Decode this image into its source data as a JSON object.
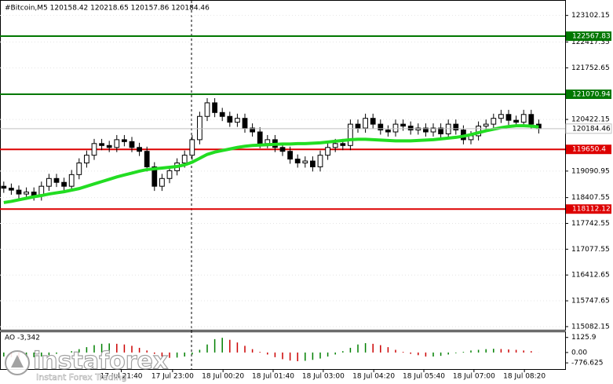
{
  "chart_data": {
    "type": "candlestick",
    "title": "#Bitcoin,M5  120158.42 120218.65 120157.86 120184.46",
    "open": [
      118700,
      118650,
      118600,
      118500,
      118550,
      118450,
      118700,
      118900,
      118800,
      118700,
      119000,
      119300,
      119500,
      119800,
      119750,
      119700,
      119900,
      119850,
      119700,
      119600,
      119200,
      118700,
      118900,
      119100,
      119300,
      119500,
      119900,
      120500,
      120850,
      120600,
      120500,
      120350,
      120450,
      120200,
      120100,
      119800,
      119900,
      119700,
      119600,
      119400,
      119300,
      119350,
      119200,
      119500,
      119700,
      119800,
      119750,
      120300,
      120200,
      120450,
      120300,
      120150,
      120100,
      120300,
      120250,
      120150,
      120200,
      120100,
      120200,
      120050,
      120300,
      120150,
      119900,
      120000,
      120250,
      120300,
      120450,
      120550,
      120400,
      120350,
      120550,
      120300
    ],
    "high": [
      118820,
      118770,
      118720,
      118670,
      118670,
      118820,
      119020,
      119020,
      118920,
      119120,
      119420,
      119620,
      119920,
      119920,
      119870,
      120020,
      120020,
      119970,
      119820,
      119720,
      119320,
      119020,
      119220,
      119420,
      119620,
      120020,
      120620,
      120970,
      120970,
      120720,
      120620,
      120570,
      120570,
      120320,
      120220,
      120020,
      120020,
      119820,
      119720,
      119520,
      119470,
      119470,
      119620,
      119820,
      119920,
      119920,
      120420,
      120420,
      120570,
      120570,
      120420,
      120270,
      120420,
      120420,
      120370,
      120320,
      120320,
      120320,
      120320,
      120420,
      120420,
      120270,
      120120,
      120370,
      120420,
      120570,
      120670,
      120670,
      120520,
      120670,
      120670,
      120420
    ],
    "low": [
      118530,
      118480,
      118380,
      118380,
      118330,
      118330,
      118580,
      118680,
      118580,
      118580,
      118880,
      119180,
      119380,
      119630,
      119580,
      119580,
      119730,
      119580,
      119480,
      119080,
      118580,
      118580,
      118780,
      118980,
      119180,
      119380,
      119780,
      120380,
      120480,
      120380,
      120230,
      120230,
      120080,
      119980,
      119680,
      119680,
      119580,
      119480,
      119280,
      119180,
      119180,
      119080,
      119080,
      119380,
      119580,
      119630,
      119630,
      120080,
      120080,
      120180,
      120030,
      119980,
      119980,
      120130,
      120030,
      120030,
      119980,
      119980,
      119930,
      119930,
      120030,
      119780,
      119780,
      119880,
      120130,
      120180,
      120330,
      120280,
      120230,
      120230,
      120180,
      120060
    ],
    "close": [
      118650,
      118600,
      118500,
      118550,
      118450,
      118700,
      118900,
      118800,
      118700,
      119000,
      119300,
      119500,
      119800,
      119750,
      119700,
      119900,
      119850,
      119700,
      119600,
      119200,
      118700,
      118900,
      119100,
      119300,
      119500,
      119900,
      120500,
      120850,
      120600,
      120500,
      120350,
      120450,
      120200,
      120100,
      119800,
      119900,
      119700,
      119600,
      119400,
      119300,
      119350,
      119200,
      119500,
      119700,
      119800,
      119750,
      120300,
      120200,
      120450,
      120300,
      120150,
      120100,
      120300,
      120250,
      120150,
      120200,
      120100,
      120200,
      120050,
      120300,
      120150,
      119900,
      120000,
      120250,
      120300,
      120450,
      120550,
      120400,
      120350,
      120550,
      120300,
      120184.46
    ],
    "up_color": "#ffffff",
    "down_color": "#000000",
    "ma": {
      "color": "#22dd22",
      "values": [
        118280,
        118310,
        118350,
        118390,
        118430,
        118460,
        118500,
        118530,
        118560,
        118600,
        118640,
        118700,
        118760,
        118820,
        118880,
        118940,
        118990,
        119040,
        119090,
        119130,
        119150,
        119170,
        119190,
        119210,
        119250,
        119320,
        119420,
        119520,
        119580,
        119620,
        119660,
        119700,
        119730,
        119750,
        119760,
        119770,
        119780,
        119790,
        119790,
        119800,
        119800,
        119810,
        119820,
        119840,
        119860,
        119880,
        119900,
        119910,
        119910,
        119900,
        119890,
        119880,
        119870,
        119870,
        119870,
        119880,
        119890,
        119900,
        119920,
        119940,
        119960,
        119990,
        120030,
        120080,
        120130,
        120170,
        120210,
        120240,
        120260,
        120260,
        120250,
        120230
      ]
    },
    "levels": [
      {
        "value": 122567.83,
        "color": "#007700"
      },
      {
        "value": 121070.94,
        "color": "#007700"
      },
      {
        "value": 119650.4,
        "color": "#dd0000"
      },
      {
        "value": 118112.12,
        "color": "#dd0000"
      }
    ],
    "current_price": {
      "value": 120184.46,
      "color": "#c0c0c0"
    },
    "ylim": [
      115000,
      123500
    ],
    "yticks": [
      123102.15,
      122417.35,
      121752.65,
      120422.15,
      119090.95,
      118407.55,
      117742.55,
      117077.55,
      116412.65,
      115747.65,
      115082.15
    ],
    "grid": true,
    "xlim": [
      -0.5,
      74.5
    ],
    "xticks": [
      {
        "value": 15.6,
        "label": "17 Jul 21:40"
      },
      {
        "value": 22.4,
        "label": "17 Jul 23:00"
      },
      {
        "value": 29.1,
        "label": "18 Jul 00:20"
      },
      {
        "value": 35.75,
        "label": "18 Jul 01:40"
      },
      {
        "value": 42.4,
        "label": "18 Jul 03:00"
      },
      {
        "value": 49.1,
        "label": "18 Jul 04:20"
      },
      {
        "value": 55.75,
        "label": "18 Jul 05:40"
      },
      {
        "value": 62.4,
        "label": "18 Jul 07:00"
      },
      {
        "value": 69.1,
        "label": "18 Jul 08:20"
      }
    ],
    "indicator": {
      "type": "bar",
      "label": "AO -3,342",
      "up_color": "#008000",
      "down_color": "#cc0000",
      "values": [
        -300,
        -350,
        -400,
        -380,
        -350,
        -300,
        -200,
        -100,
        0,
        100,
        250,
        400,
        550,
        650,
        680,
        650,
        600,
        500,
        350,
        150,
        -100,
        -300,
        -400,
        -380,
        -300,
        -150,
        200,
        600,
        1000,
        1100,
        950,
        750,
        500,
        250,
        50,
        -150,
        -350,
        -500,
        -600,
        -650,
        -620,
        -550,
        -450,
        -300,
        -150,
        100,
        350,
        600,
        700,
        650,
        550,
        400,
        200,
        50,
        -100,
        -200,
        -300,
        -300,
        -250,
        -150,
        -50,
        50,
        150,
        200,
        250,
        280,
        260,
        230,
        200,
        150,
        100,
        -3.342
      ],
      "ylim": [
        -1240,
        1580
      ],
      "yticks": [
        1125.9,
        {
          "value": 0,
          "label": "0.00"
        },
        -776.625
      ]
    },
    "watermark": {
      "brand": "instaforex",
      "tagline": "Instant Forex Trading"
    }
  }
}
